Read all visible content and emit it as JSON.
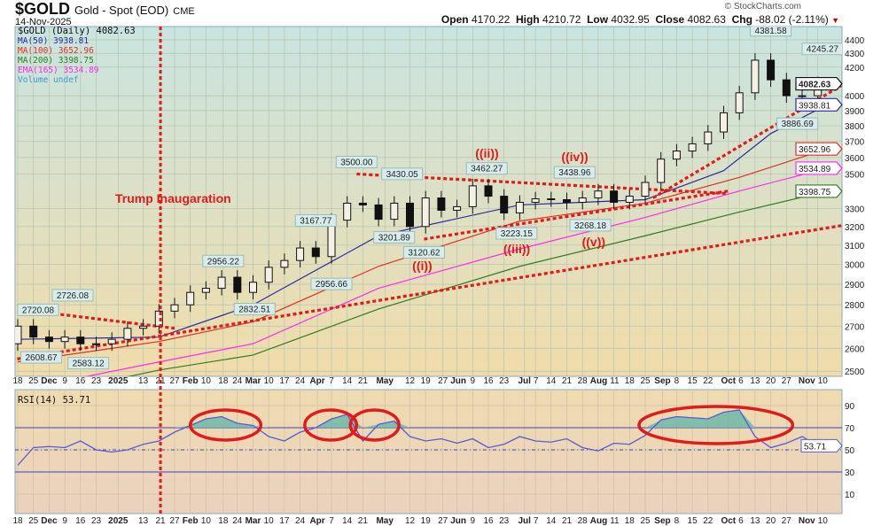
{
  "header": {
    "symbol": "$GOLD",
    "name": "Gold - Spot (EOD)",
    "exchange": "CME",
    "date": "14-Nov-2025",
    "copyright": "© StockCharts.com",
    "open_label": "Open",
    "open": "4170.22",
    "high_label": "High",
    "high": "4210.72",
    "low_label": "Low",
    "low": "4032.95",
    "close_label": "Close",
    "close": "4082.63",
    "chg_label": "Chg",
    "chg": "-88.02 (-2.11%)",
    "chg_icon": "triangle-down-icon"
  },
  "legend": {
    "price": "$GOLD (Daily) 4082.63",
    "ma50": "MA(50) 3938.81",
    "ma100": "MA(100) 3652.96",
    "ma200": "MA(200) 3398.75",
    "ema165": "EMA(165) 3534.89",
    "volume": "Volume undef",
    "rsi": "RSI(14) 53.71"
  },
  "colors": {
    "ma50": "#2a2aa0",
    "ma100": "#e0301e",
    "ma200": "#2e7d1e",
    "ema165": "#ff2af0",
    "rsi": "#5a5ad8",
    "annotation": "#e21a1a"
  },
  "chart_data": [
    {
      "type": "candlestick",
      "title": "$GOLD (Daily)",
      "scale": "log",
      "ylim": [
        2500,
        4400
      ],
      "yticks": [
        4400,
        4300,
        4200,
        4000,
        3900,
        3800,
        3700,
        3600,
        3500,
        3300,
        3200,
        3100,
        3000,
        2900,
        2800,
        2700,
        2600,
        2500
      ],
      "x_unit": "weeks since 18-Nov-2024",
      "xticks": [
        {
          "t": "18",
          "w": 0
        },
        {
          "t": "25",
          "w": 1
        },
        {
          "t": "Dec",
          "w": 2,
          "b": true
        },
        {
          "t": "9",
          "w": 3
        },
        {
          "t": "16",
          "w": 4
        },
        {
          "t": "23",
          "w": 5
        },
        {
          "t": "2025",
          "w": 6.4,
          "b": true
        },
        {
          "t": "13",
          "w": 8
        },
        {
          "t": "21",
          "w": 9.1
        },
        {
          "t": "27",
          "w": 10
        },
        {
          "t": "Feb",
          "w": 11,
          "b": true
        },
        {
          "t": "10",
          "w": 12
        },
        {
          "t": "18",
          "w": 13.1
        },
        {
          "t": "24",
          "w": 14
        },
        {
          "t": "Mar",
          "w": 15,
          "b": true
        },
        {
          "t": "10",
          "w": 16
        },
        {
          "t": "17",
          "w": 17
        },
        {
          "t": "24",
          "w": 18
        },
        {
          "t": "Apr",
          "w": 19.1,
          "b": true
        },
        {
          "t": "7",
          "w": 20
        },
        {
          "t": "14",
          "w": 21
        },
        {
          "t": "21",
          "w": 22
        },
        {
          "t": "May",
          "w": 23.4,
          "b": true
        },
        {
          "t": "12",
          "w": 25
        },
        {
          "t": "19",
          "w": 26
        },
        {
          "t": "27",
          "w": 27.1
        },
        {
          "t": "Jun",
          "w": 28,
          "b": true
        },
        {
          "t": "9",
          "w": 29
        },
        {
          "t": "16",
          "w": 30
        },
        {
          "t": "23",
          "w": 31
        },
        {
          "t": "Jul",
          "w": 32.3,
          "b": true
        },
        {
          "t": "7",
          "w": 33
        },
        {
          "t": "14",
          "w": 34
        },
        {
          "t": "21",
          "w": 35
        },
        {
          "t": "28",
          "w": 36
        },
        {
          "t": "Aug",
          "w": 37,
          "b": true
        },
        {
          "t": "11",
          "w": 38
        },
        {
          "t": "18",
          "w": 39
        },
        {
          "t": "25",
          "w": 40
        },
        {
          "t": "Sep",
          "w": 41.1,
          "b": true
        },
        {
          "t": "8",
          "w": 42
        },
        {
          "t": "15",
          "w": 43
        },
        {
          "t": "22",
          "w": 44
        },
        {
          "t": "Oct",
          "w": 45.3,
          "b": true
        },
        {
          "t": "6",
          "w": 46
        },
        {
          "t": "13",
          "w": 47
        },
        {
          "t": "20",
          "w": 48
        },
        {
          "t": "27",
          "w": 49
        },
        {
          "t": "Nov",
          "w": 50.3,
          "b": true
        },
        {
          "t": "10",
          "w": 51
        }
      ],
      "weekly_close": [
        2700,
        2650,
        2630,
        2650,
        2620,
        2620,
        2640,
        2690,
        2700,
        2770,
        2800,
        2860,
        2880,
        2935,
        2860,
        2910,
        2985,
        3020,
        3085,
        3040,
        3235,
        3330,
        3320,
        3240,
        3330,
        3200,
        3360,
        3290,
        3310,
        3430,
        3370,
        3275,
        3335,
        3355,
        3350,
        3335,
        3360,
        3400,
        3335,
        3370,
        3450,
        3590,
        3640,
        3685,
        3760,
        3885,
        4020,
        4250,
        4110,
        4000,
        4000,
        4082.63
      ],
      "first_open": 2620,
      "moving_averages": [
        {
          "name": "MA(50)",
          "key": "ma50",
          "last": "3938.81",
          "points": [
            [
              0,
              2640
            ],
            [
              9,
              2650
            ],
            [
              15,
              2800
            ],
            [
              23,
              3150
            ],
            [
              32,
              3320
            ],
            [
              40,
              3350
            ],
            [
              45,
              3520
            ],
            [
              48,
              3750
            ],
            [
              51.6,
              3938.81
            ]
          ]
        },
        {
          "name": "MA(100)",
          "key": "ma100",
          "last": "3652.96",
          "points": [
            [
              0,
              2540
            ],
            [
              9,
              2630
            ],
            [
              15,
              2720
            ],
            [
              23,
              2990
            ],
            [
              32,
              3230
            ],
            [
              40,
              3330
            ],
            [
              46,
              3480
            ],
            [
              51.6,
              3652.96
            ]
          ]
        },
        {
          "name": "EMA(165)",
          "key": "ema165",
          "last": "3534.89",
          "points": [
            [
              0,
              2420
            ],
            [
              9,
              2540
            ],
            [
              15,
              2620
            ],
            [
              23,
              2880
            ],
            [
              32,
              3080
            ],
            [
              40,
              3250
            ],
            [
              46,
              3400
            ],
            [
              51.6,
              3534.89
            ]
          ]
        },
        {
          "name": "MA(200)",
          "key": "ma200",
          "last": "3398.75",
          "points": [
            [
              0,
              2380
            ],
            [
              9,
              2505
            ],
            [
              15,
              2570
            ],
            [
              23,
              2780
            ],
            [
              32,
              2990
            ],
            [
              40,
              3150
            ],
            [
              46,
              3280
            ],
            [
              51.6,
              3398.75
            ]
          ]
        }
      ],
      "price_labels": [
        {
          "t": "2720.08",
          "w": 1.3,
          "p": 2720.08,
          "pos": "above"
        },
        {
          "t": "2726.08",
          "w": 3.5,
          "p": 2726.08,
          "pos": "above"
        },
        {
          "t": "2608.67",
          "w": 1.5,
          "p": 2608.67,
          "pos": "below"
        },
        {
          "t": "2583.12",
          "w": 4.5,
          "p": 2583.12,
          "pos": "below"
        },
        {
          "t": "2956.22",
          "w": 13.1,
          "p": 2956.22,
          "pos": "above"
        },
        {
          "t": "2832.51",
          "w": 15.1,
          "p": 2832.51,
          "pos": "below"
        },
        {
          "t": "3167.77",
          "w": 19,
          "p": 3167.77,
          "pos": "above"
        },
        {
          "t": "2956.66",
          "w": 20,
          "p": 2956.66,
          "pos": "below"
        },
        {
          "t": "3500.00",
          "w": 21.6,
          "p": 3500,
          "pos": "above"
        },
        {
          "t": "3430.05",
          "w": 24.5,
          "p": 3430.05,
          "pos": "above"
        },
        {
          "t": "3201.89",
          "w": 24,
          "p": 3201.89,
          "pos": "below"
        },
        {
          "t": "3120.62",
          "w": 25.9,
          "p": 3120.62,
          "pos": "below"
        },
        {
          "t": "3462.27",
          "w": 29.9,
          "p": 3462.27,
          "pos": "above"
        },
        {
          "t": "3223.15",
          "w": 31.8,
          "p": 3223.15,
          "pos": "below"
        },
        {
          "t": "3438.96",
          "w": 35.5,
          "p": 3438.96,
          "pos": "above"
        },
        {
          "t": "3268.18",
          "w": 36.5,
          "p": 3268.18,
          "pos": "below"
        },
        {
          "t": "4381.58",
          "w": 48,
          "p": 4381.58,
          "pos": "above"
        },
        {
          "t": "3886.69",
          "w": 49.7,
          "p": 3886.69,
          "pos": "below"
        },
        {
          "t": "4245.27",
          "w": 51.3,
          "p": 4245.27,
          "pos": "above"
        }
      ],
      "wave_labels": [
        {
          "t": "((i))",
          "w": 25.8,
          "p": 3010
        },
        {
          "t": "((ii))",
          "w": 29.9,
          "p": 3570
        },
        {
          "t": "((iii))",
          "w": 31.8,
          "p": 3075
        },
        {
          "t": "((iv))",
          "w": 35.5,
          "p": 3540
        },
        {
          "t": "((v))",
          "w": 36.7,
          "p": 3115
        }
      ],
      "annotation": "Trump Inaugaration",
      "event_week": 9.1,
      "trendlines": [
        [
          [
            -1.2,
            2790
          ],
          [
            10,
            2690
          ]
        ],
        [
          [
            -1.2,
            2540
          ],
          [
            52.5,
            3205
          ]
        ],
        [
          [
            21.6,
            3500
          ],
          [
            45.3,
            3385
          ]
        ],
        [
          [
            25.9,
            3132
          ],
          [
            45.3,
            3400
          ]
        ],
        [
          [
            40.5,
            3360
          ],
          [
            52.5,
            4070
          ]
        ]
      ],
      "value_tags": [
        {
          "t": "4082.63",
          "p": 4082.63,
          "key": "price"
        },
        {
          "t": "3938.81",
          "p": 3938.81,
          "key": "ma50"
        },
        {
          "t": "3652.96",
          "p": 3652.96,
          "key": "ma100"
        },
        {
          "t": "3534.89",
          "p": 3534.89,
          "key": "ema165"
        },
        {
          "t": "3398.75",
          "p": 3398.75,
          "key": "ma200"
        }
      ]
    },
    {
      "type": "line",
      "title": "RSI(14)",
      "ylim": [
        0,
        100
      ],
      "yticks": [
        90,
        70,
        50,
        30,
        10
      ],
      "overbought": 70,
      "oversold": 30,
      "mid": 50,
      "last": "53.71",
      "values": [
        36,
        52,
        53,
        52,
        58,
        50,
        48,
        50,
        55,
        58,
        66,
        72,
        78,
        80,
        74,
        72,
        62,
        58,
        66,
        70,
        78,
        82,
        58,
        73,
        76,
        62,
        58,
        60,
        56,
        60,
        52,
        55,
        62,
        58,
        57,
        60,
        52,
        49,
        56,
        55,
        63,
        77,
        80,
        79,
        78,
        84,
        86,
        62,
        52,
        56,
        62,
        53.71
      ],
      "circled_weeks": [
        [
          11,
          15.5
        ],
        [
          18.3,
          21.6
        ],
        [
          21.2,
          24.3
        ],
        [
          39.6,
          49.4
        ]
      ]
    }
  ]
}
